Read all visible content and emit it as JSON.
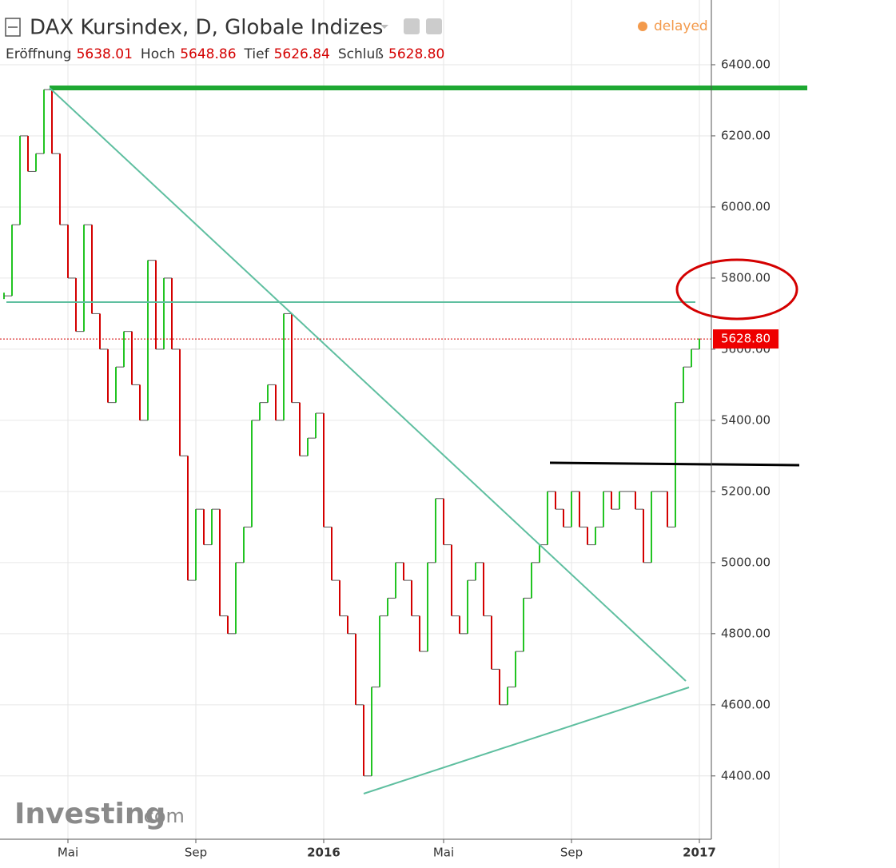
{
  "chart_data": {
    "type": "price",
    "title": "DAX Kursindex, D, Globale Indizes",
    "stats": [
      {
        "label": "Eröffnung",
        "value": "5638.01"
      },
      {
        "label": "Hoch",
        "value": "5648.86"
      },
      {
        "label": "Tief",
        "value": "5626.84"
      },
      {
        "label": "Schluß",
        "value": "5628.80"
      }
    ],
    "status": "delayed",
    "brand": "Investing",
    "brand_suffix": ".com",
    "categories": [
      null,
      null,
      null,
      null,
      null,
      null,
      null,
      null,
      "Mai",
      null,
      null,
      null,
      null,
      null,
      null,
      null,
      null,
      null,
      null,
      null,
      null,
      null,
      null,
      null,
      "Sep",
      null,
      null,
      null,
      null,
      null,
      null,
      null,
      null,
      null,
      null,
      null,
      null,
      null,
      null,
      null,
      "2016",
      null,
      null,
      null,
      null,
      null,
      null,
      null,
      null,
      null,
      null,
      null,
      null,
      null,
      null,
      "Mai",
      null,
      null,
      null,
      null,
      null,
      null,
      null,
      null,
      null,
      null,
      null,
      null,
      null,
      null,
      null,
      "Sep",
      null,
      null,
      null,
      null,
      null,
      null,
      null,
      null,
      null,
      null,
      null,
      null,
      null,
      null,
      null,
      "2017"
    ],
    "values": [
      5750,
      5950,
      6200,
      6100,
      6150,
      6330,
      6150,
      5950,
      5800,
      5650,
      5950,
      5700,
      5600,
      5450,
      5550,
      5650,
      5500,
      5400,
      5850,
      5600,
      5800,
      5600,
      5300,
      4950,
      5150,
      5050,
      5150,
      4850,
      4800,
      5000,
      5100,
      5400,
      5450,
      5500,
      5400,
      5700,
      5450,
      5300,
      5350,
      5420,
      5100,
      4950,
      4850,
      4800,
      4600,
      4400,
      4650,
      4850,
      4900,
      5000,
      4950,
      4850,
      4750,
      5000,
      5180,
      5050,
      4850,
      4800,
      4950,
      5000,
      4850,
      4700,
      4600,
      4650,
      4750,
      4900,
      5000,
      5050,
      5200,
      5150,
      5100,
      5200,
      5100,
      5050,
      5100,
      5200,
      5150,
      5200,
      5200,
      5150,
      5000,
      5200,
      5200,
      5100,
      5450,
      5550,
      5600,
      5630
    ],
    "up_color": "#22c422",
    "down_color": "#d40000",
    "last_price": {
      "value": 5628.8,
      "label": "5628.80"
    },
    "ylim": [
      4222,
      6582
    ],
    "yticks": [
      {
        "value": 4400,
        "label": "4400.00"
      },
      {
        "value": 4600,
        "label": "4600.00"
      },
      {
        "value": 4800,
        "label": "4800.00"
      },
      {
        "value": 5000,
        "label": "5000.00"
      },
      {
        "value": 5200,
        "label": "5200.00"
      },
      {
        "value": 5400,
        "label": "5400.00"
      },
      {
        "value": 5600,
        "label": "5600.00"
      },
      {
        "value": 5800,
        "label": "5800.00"
      },
      {
        "value": 6000,
        "label": "6000.00"
      },
      {
        "value": 6200,
        "label": "6200.00"
      },
      {
        "value": 6400,
        "label": "6400.00"
      }
    ],
    "grid": true
  }
}
